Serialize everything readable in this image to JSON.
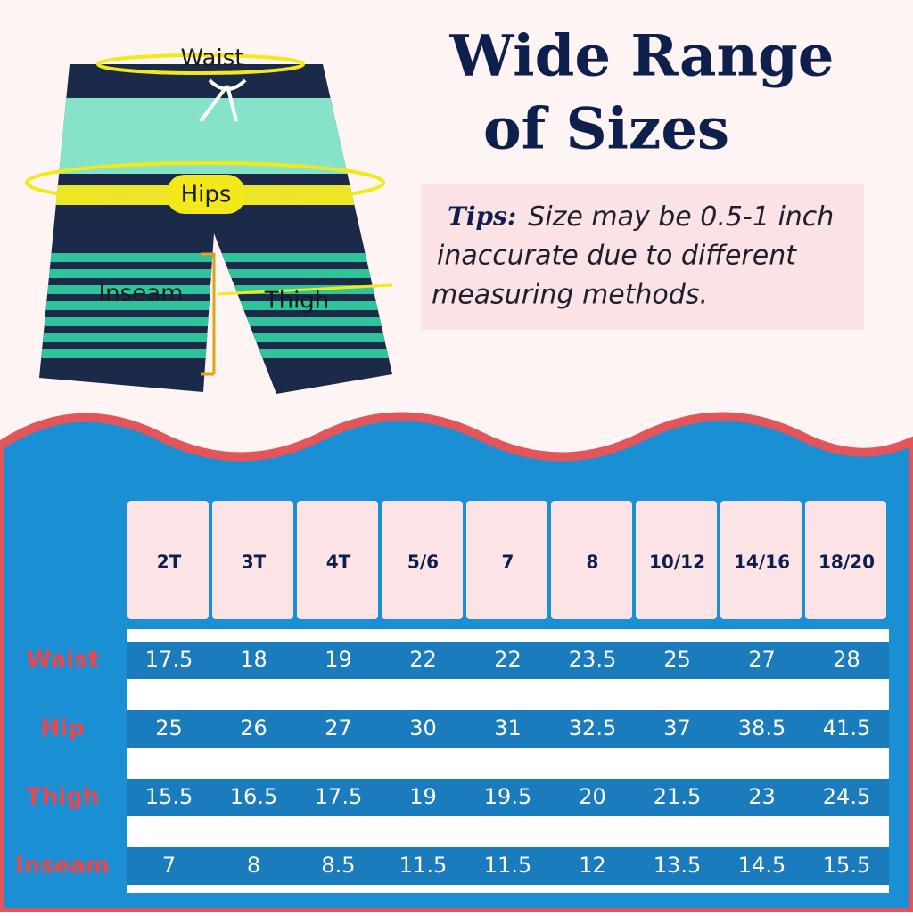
{
  "header": {
    "title_lines": [
      "Wide Range",
      "of Sizes"
    ]
  },
  "tips": {
    "label": "Tips:",
    "lines": [
      "Size may be 0.5-1 inch",
      "inaccurate due to different",
      "measuring methods."
    ]
  },
  "diagram": {
    "labels": [
      "Waist",
      "Hips",
      "Inseam",
      "Thigh"
    ]
  },
  "table": {
    "columns": [
      "2T",
      "3T",
      "4T",
      "5/6",
      "7",
      "8",
      "10/12",
      "14/16",
      "18/20"
    ],
    "rows": [
      {
        "label": "Waist",
        "values": [
          17.5,
          18,
          19,
          22,
          22,
          23.5,
          25,
          27,
          28
        ]
      },
      {
        "label": "Hip",
        "values": [
          25,
          26,
          27,
          30,
          31,
          32.5,
          37,
          38.5,
          41.5
        ]
      },
      {
        "label": "Thigh",
        "values": [
          15.5,
          16.5,
          17.5,
          19,
          19.5,
          20,
          21.5,
          23,
          24.5
        ]
      },
      {
        "label": "Inseam",
        "values": [
          7,
          8,
          8.5,
          11.5,
          11.5,
          12,
          13.5,
          14.5,
          15.5
        ]
      }
    ]
  }
}
